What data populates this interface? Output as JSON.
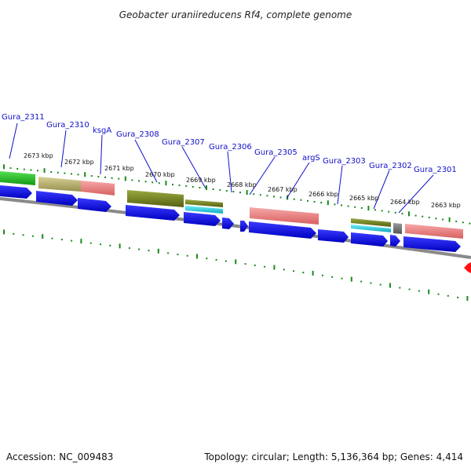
{
  "title": "Geobacter uraniireducens Rf4, complete genome",
  "footer": {
    "accession": "Accession: NC_009483",
    "summary": "Topology: circular; Length: 5,136,364 bp; Genes: 4,414"
  },
  "gene_labels": [
    "Gura_2311",
    "Gura_2310",
    "ksgA",
    "Gura_2308",
    "Gura_2307",
    "Gura_2306",
    "Gura_2305",
    "argS",
    "Gura_2303",
    "Gura_2302",
    "Gura_2301"
  ],
  "kbp_labels": [
    "2673 kbp",
    "2672 kbp",
    "2671 kbp",
    "2670 kbp",
    "2669 kbp",
    "2668 kbp",
    "2667 kbp",
    "2666 kbp",
    "2665 kbp",
    "2664 kbp",
    "2663 kbp"
  ],
  "colors": {
    "cds_arrow": "#1010e6",
    "backbone": "#888888",
    "tick": "#1a8a1a",
    "marker": "#ff1010",
    "cog_green": "#33cc33",
    "cog_olive": "#b8b070",
    "cog_salmon": "#f08080",
    "cog_darkolive": "#7a8a20",
    "cog_cyan": "#20d0e0",
    "cog_gray": "#707070"
  }
}
